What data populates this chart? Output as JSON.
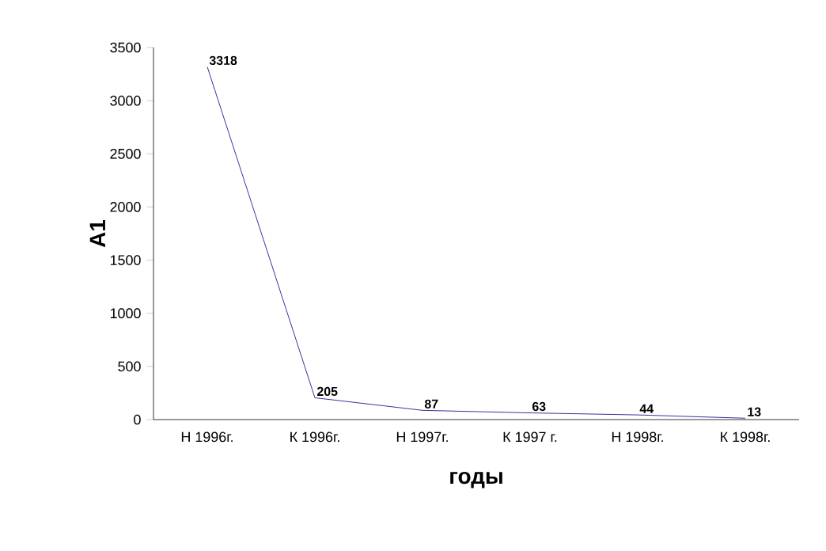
{
  "chart_data": {
    "type": "line",
    "xlabel": "годы",
    "ylabel": "А1",
    "categories": [
      "Н 1996г.",
      "К 1996г.",
      "Н 1997г.",
      "К 1997 г.",
      "Н 1998г.",
      "К 1998г."
    ],
    "values": [
      3318,
      205,
      87,
      63,
      44,
      13
    ],
    "color": "#000080",
    "ylim": [
      0,
      3500
    ],
    "yticks": [
      0,
      500,
      1000,
      1500,
      2000,
      2500,
      3000,
      3500
    ],
    "data_labels": true
  }
}
